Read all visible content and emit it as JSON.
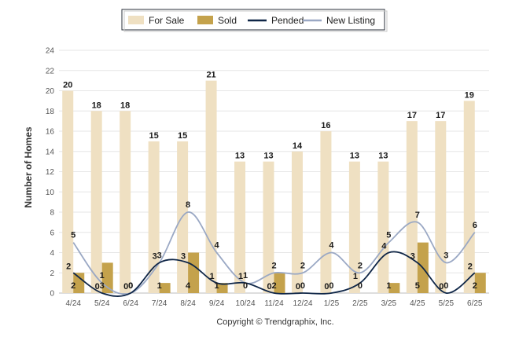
{
  "chart_data": {
    "type": "bar",
    "categories": [
      "4/24",
      "5/24",
      "6/24",
      "7/24",
      "8/24",
      "9/24",
      "10/24",
      "11/24",
      "12/24",
      "1/25",
      "2/25",
      "3/25",
      "4/25",
      "5/25",
      "6/25"
    ],
    "ylabel": "Number of Homes",
    "ylim": [
      0,
      24
    ],
    "yticks": [
      0,
      2,
      4,
      6,
      8,
      10,
      12,
      14,
      16,
      18,
      20,
      22,
      24
    ],
    "grid": true,
    "legend_position": "top-center",
    "series": [
      {
        "name": "For Sale",
        "kind": "bar",
        "color": "#efe0c2",
        "values": [
          20,
          18,
          18,
          15,
          15,
          21,
          13,
          13,
          14,
          16,
          13,
          13,
          17,
          17,
          19
        ]
      },
      {
        "name": "Sold",
        "kind": "bar",
        "color": "#c4a24c",
        "values": [
          2,
          3,
          0,
          1,
          4,
          1,
          0,
          2,
          0,
          0,
          0,
          1,
          5,
          0,
          2
        ]
      },
      {
        "name": "Pended",
        "kind": "line",
        "color": "#0f2647",
        "values": [
          2,
          0,
          0,
          3,
          3,
          1,
          1,
          0,
          0,
          0,
          1,
          4,
          3,
          0,
          2
        ]
      },
      {
        "name": "New Listing",
        "kind": "line",
        "color": "#9aa8c4",
        "values": [
          5,
          1,
          0,
          3,
          8,
          4,
          1,
          2,
          2,
          4,
          2,
          5,
          7,
          3,
          6
        ]
      }
    ]
  },
  "credit": "Copyright © Trendgraphix, Inc."
}
